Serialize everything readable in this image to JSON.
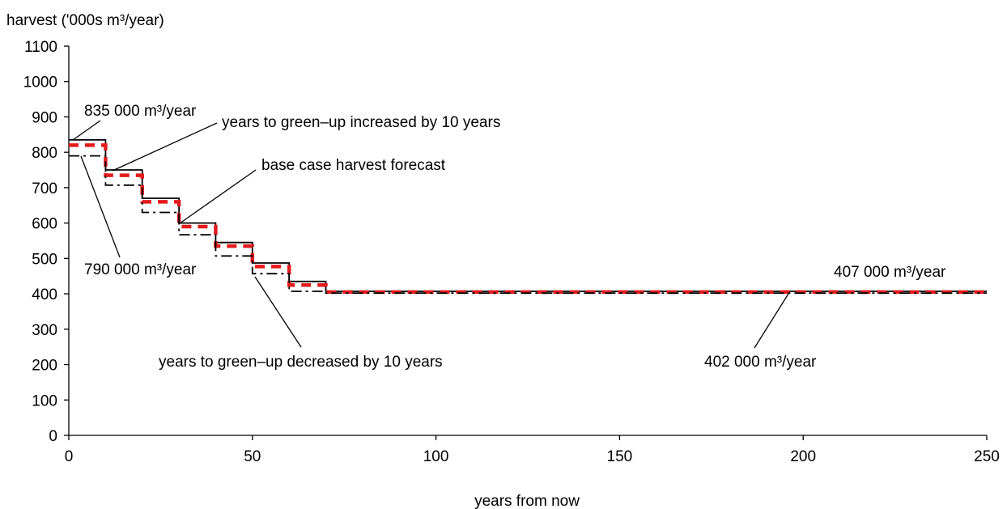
{
  "chart_data": {
    "type": "line",
    "title": "",
    "ylabel": "harvest ('000s m³/year)",
    "xlabel": "years from now",
    "xlim": [
      0,
      250
    ],
    "ylim": [
      0,
      1100
    ],
    "x_ticks": [
      0,
      50,
      100,
      150,
      200,
      250
    ],
    "y_ticks": [
      0,
      100,
      200,
      300,
      400,
      500,
      600,
      700,
      800,
      900,
      1000,
      1100
    ],
    "step_years": [
      0,
      10,
      20,
      30,
      40,
      50,
      60,
      70,
      250
    ],
    "series": [
      {
        "name": "years to green–up increased by 10 years",
        "style": "solid",
        "color": "#000000",
        "values": [
          835,
          750,
          670,
          600,
          545,
          487,
          435,
          407
        ]
      },
      {
        "name": "base case harvest forecast",
        "style": "dashed",
        "color": "#e41a1c",
        "values": [
          820,
          735,
          660,
          590,
          535,
          477,
          425,
          405
        ]
      },
      {
        "name": "years to green–up decreased by 10 years",
        "style": "dash-dot",
        "color": "#000000",
        "values": [
          790,
          707,
          630,
          567,
          507,
          457,
          407,
          402
        ]
      }
    ],
    "annotations": [
      {
        "text": "835 000 m³/year",
        "x": 0,
        "y": 835
      },
      {
        "text": "years to green–up increased by 10 years",
        "x": 12,
        "y": 750
      },
      {
        "text": "base case harvest forecast",
        "x": 30,
        "y": 595
      },
      {
        "text": "790 000 m³/year",
        "x": 4,
        "y": 790
      },
      {
        "text": "years to green–up decreased by 10 years",
        "x": 52,
        "y": 457
      },
      {
        "text": "407 000 m³/year",
        "x": 200,
        "y": 407
      },
      {
        "text": "402 000 m³/year",
        "x": 197,
        "y": 402
      }
    ]
  }
}
